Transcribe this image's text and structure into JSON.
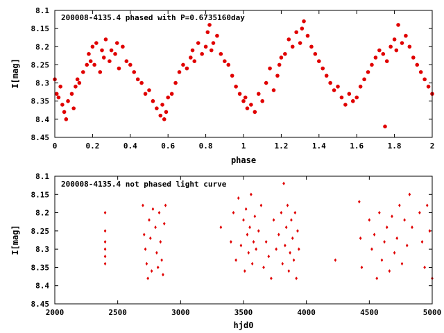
{
  "chart_data": [
    {
      "type": "scatter",
      "title": "200008-4135.4 phased with P=0.6735160day",
      "xlabel": "phase",
      "ylabel": "I[mag]",
      "xlim": [
        0,
        2
      ],
      "ylim": [
        8.1,
        8.45
      ],
      "y_inverted": true,
      "x_ticks": [
        "0",
        "0.2",
        "0.4",
        "0.6",
        "0.8",
        "1",
        "1.2",
        "1.4",
        "1.6",
        "1.8",
        "2"
      ],
      "y_ticks": [
        "8.1",
        "8.15",
        "8.2",
        "8.25",
        "8.3",
        "8.35",
        "8.4",
        "8.45"
      ],
      "marker": "filled-circle-large",
      "color": "#e00000",
      "series": [
        {
          "x": [
            0.0,
            0.01,
            0.02,
            0.03,
            0.04,
            0.05,
            0.06,
            0.07,
            0.09,
            0.1,
            0.11,
            0.12,
            0.13,
            0.15,
            0.17,
            0.18,
            0.19,
            0.2,
            0.21,
            0.22,
            0.24,
            0.25,
            0.26,
            0.27,
            0.29,
            0.3,
            0.32,
            0.33,
            0.34,
            0.36,
            0.38,
            0.4,
            0.42,
            0.44,
            0.46,
            0.48,
            0.5,
            0.52,
            0.54,
            0.56,
            0.57,
            0.58,
            0.59,
            0.6,
            0.62,
            0.64,
            0.66,
            0.68,
            0.7,
            0.72,
            0.73,
            0.74,
            0.76,
            0.78,
            0.8,
            0.81,
            0.82,
            0.83,
            0.84,
            0.86,
            0.88,
            0.9,
            0.92,
            0.94,
            0.96,
            0.98,
            1.0,
            1.01,
            1.02,
            1.04,
            1.06,
            1.08,
            1.1,
            1.12,
            1.14,
            1.16,
            1.18,
            1.19,
            1.2,
            1.22,
            1.24,
            1.26,
            1.28,
            1.3,
            1.31,
            1.32,
            1.34,
            1.36,
            1.38,
            1.4,
            1.42,
            1.44,
            1.46,
            1.48,
            1.5,
            1.52,
            1.54,
            1.56,
            1.58,
            1.6,
            1.62,
            1.64,
            1.66,
            1.68,
            1.7,
            1.72,
            1.74,
            1.75,
            1.76,
            1.78,
            1.8,
            1.81,
            1.82,
            1.84,
            1.86,
            1.88,
            1.9,
            1.92,
            1.94,
            1.96,
            1.98,
            2.0
          ],
          "y": [
            8.29,
            8.33,
            8.34,
            8.31,
            8.36,
            8.38,
            8.4,
            8.35,
            8.33,
            8.37,
            8.31,
            8.29,
            8.3,
            8.27,
            8.25,
            8.22,
            8.24,
            8.2,
            8.25,
            8.19,
            8.27,
            8.21,
            8.23,
            8.18,
            8.24,
            8.21,
            8.22,
            8.19,
            8.26,
            8.2,
            8.24,
            8.25,
            8.27,
            8.29,
            8.3,
            8.33,
            8.32,
            8.35,
            8.37,
            8.39,
            8.36,
            8.4,
            8.38,
            8.34,
            8.33,
            8.3,
            8.27,
            8.25,
            8.26,
            8.23,
            8.21,
            8.24,
            8.19,
            8.22,
            8.2,
            8.16,
            8.14,
            8.21,
            8.19,
            8.17,
            8.22,
            8.24,
            8.25,
            8.28,
            8.31,
            8.33,
            8.35,
            8.34,
            8.37,
            8.36,
            8.38,
            8.33,
            8.35,
            8.3,
            8.26,
            8.32,
            8.28,
            8.25,
            8.23,
            8.22,
            8.18,
            8.2,
            8.16,
            8.19,
            8.15,
            8.13,
            8.17,
            8.2,
            8.22,
            8.24,
            8.26,
            8.28,
            8.3,
            8.32,
            8.31,
            8.34,
            8.36,
            8.33,
            8.35,
            8.34,
            8.31,
            8.29,
            8.27,
            8.25,
            8.23,
            8.21,
            8.22,
            8.42,
            8.24,
            8.2,
            8.18,
            8.21,
            8.14,
            8.19,
            8.17,
            8.2,
            8.23,
            8.25,
            8.27,
            8.29,
            8.31,
            8.33
          ]
        }
      ]
    },
    {
      "type": "scatter",
      "title": "200008-4135.4 not phased light curve",
      "xlabel": "hjd0",
      "ylabel": "I[mag]",
      "xlim": [
        2000,
        5000
      ],
      "ylim": [
        8.1,
        8.45
      ],
      "y_inverted": true,
      "x_ticks": [
        "2000",
        "2500",
        "3000",
        "3500",
        "4000",
        "4500",
        "5000"
      ],
      "y_ticks": [
        "8.1",
        "8.15",
        "8.2",
        "8.25",
        "8.3",
        "8.35",
        "8.4",
        "8.45"
      ],
      "marker": "filled-diamond-small",
      "color": "#e00000",
      "series": [
        {
          "x": [
            2400,
            2400,
            2400,
            2400,
            2400,
            2400,
            2700,
            2710,
            2720,
            2730,
            2740,
            2750,
            2760,
            2770,
            2780,
            2800,
            2810,
            2820,
            2830,
            2840,
            2850,
            2860,
            2870,
            2880,
            3320,
            3400,
            3420,
            3440,
            3460,
            3480,
            3500,
            3510,
            3520,
            3530,
            3540,
            3550,
            3560,
            3570,
            3580,
            3590,
            3600,
            3620,
            3640,
            3660,
            3680,
            3700,
            3720,
            3740,
            3760,
            3780,
            3800,
            3810,
            3820,
            3830,
            3840,
            3850,
            3860,
            3870,
            3880,
            3890,
            3900,
            3910,
            3920,
            3930,
            3940,
            4230,
            4420,
            4430,
            4440,
            4500,
            4520,
            4540,
            4560,
            4580,
            4600,
            4620,
            4640,
            4660,
            4680,
            4700,
            4720,
            4740,
            4760,
            4780,
            4800,
            4820,
            4840,
            4900,
            4920,
            4940,
            4960,
            4980,
            5000
          ],
          "y": [
            8.2,
            8.25,
            8.28,
            8.3,
            8.32,
            8.34,
            8.18,
            8.26,
            8.3,
            8.34,
            8.38,
            8.22,
            8.27,
            8.36,
            8.19,
            8.24,
            8.31,
            8.35,
            8.2,
            8.28,
            8.33,
            8.37,
            8.23,
            8.18,
            8.24,
            8.28,
            8.2,
            8.33,
            8.16,
            8.29,
            8.22,
            8.36,
            8.19,
            8.26,
            8.31,
            8.24,
            8.15,
            8.34,
            8.28,
            8.21,
            8.3,
            8.25,
            8.18,
            8.35,
            8.28,
            8.32,
            8.38,
            8.22,
            8.3,
            8.26,
            8.2,
            8.34,
            8.12,
            8.29,
            8.24,
            8.18,
            8.36,
            8.31,
            8.22,
            8.27,
            8.33,
            8.2,
            8.38,
            8.25,
            8.3,
            8.33,
            8.17,
            8.27,
            8.35,
            8.22,
            8.3,
            8.26,
            8.38,
            8.2,
            8.33,
            8.28,
            8.24,
            8.36,
            8.21,
            8.31,
            8.27,
            8.18,
            8.34,
            8.22,
            8.29,
            8.15,
            8.24,
            8.2,
            8.28,
            8.35,
            8.18,
            8.25,
            8.38
          ]
        }
      ]
    }
  ]
}
